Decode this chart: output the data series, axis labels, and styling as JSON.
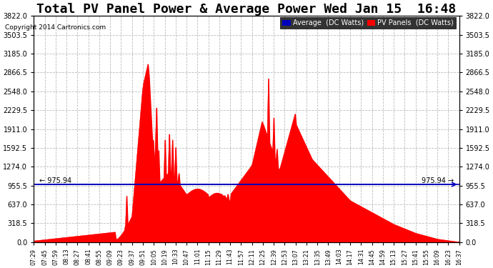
{
  "title": "Total PV Panel Power & Average Power Wed Jan 15  16:48",
  "copyright": "Copyright 2014 Cartronics.com",
  "y_max": 3822.0,
  "y_min": 0.0,
  "y_ticks": [
    0.0,
    318.5,
    637.0,
    955.5,
    1274.0,
    1592.5,
    1911.0,
    2229.5,
    2548.0,
    2866.5,
    3185.0,
    3503.5,
    3822.0
  ],
  "average_line": 975.94,
  "average_label": "975.94",
  "pv_color": "#ff0000",
  "avg_color": "#0000bb",
  "background_color": "#ffffff",
  "grid_color": "#bbbbbb",
  "title_fontsize": 13,
  "legend_avg_label": "Average  (DC Watts)",
  "legend_pv_label": "PV Panels  (DC Watts)",
  "x_labels": [
    "07:29",
    "07:45",
    "07:59",
    "08:13",
    "08:27",
    "08:41",
    "08:55",
    "09:09",
    "09:23",
    "09:37",
    "09:51",
    "10:05",
    "10:19",
    "10:33",
    "10:47",
    "11:01",
    "11:15",
    "11:29",
    "11:43",
    "11:57",
    "12:11",
    "12:25",
    "12:39",
    "12:53",
    "13:07",
    "13:21",
    "13:35",
    "13:49",
    "14:03",
    "14:17",
    "14:31",
    "14:45",
    "14:59",
    "15:13",
    "15:27",
    "15:41",
    "15:55",
    "16:09",
    "16:23",
    "16:37"
  ],
  "figsize": [
    6.9,
    3.75
  ],
  "dpi": 100
}
